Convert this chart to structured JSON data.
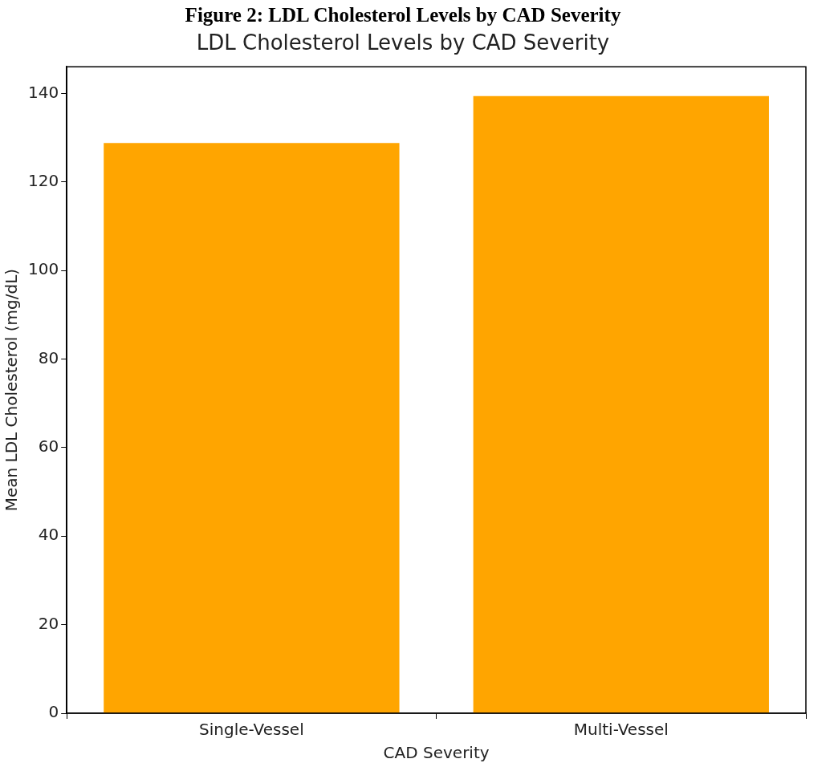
{
  "chart_data": {
    "type": "bar",
    "title": "Figure 2: LDL Cholesterol Levels by CAD Severity",
    "subtitle": "LDL Cholesterol Levels by CAD Severity",
    "xlabel": "CAD Severity",
    "ylabel": "Mean LDL Cholesterol (mg/dL)",
    "categories": [
      "Single-Vessel",
      "Multi-Vessel"
    ],
    "values": [
      128.8,
      139.4
    ],
    "color": "#ffa500",
    "ylim": [
      0,
      146
    ],
    "yticks": [
      0,
      20,
      40,
      60,
      80,
      100,
      120,
      140
    ],
    "grid": false,
    "legend": false
  }
}
